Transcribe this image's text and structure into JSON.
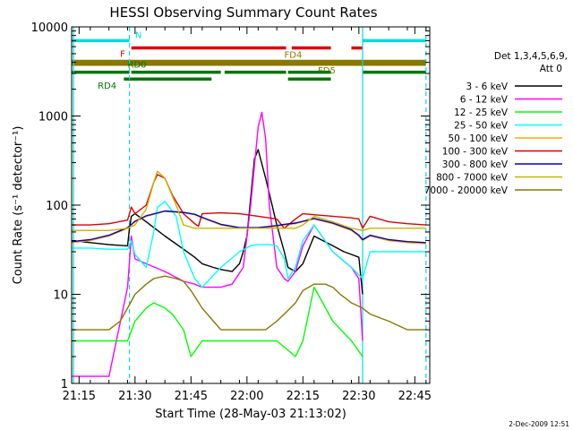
{
  "chart_data": {
    "type": "line",
    "title": "HESSI Observing Summary Count Rates",
    "xlabel": "Start Time (28-May-03 21:13:02)",
    "ylabel": "Count Rate (s⁻¹ detector⁻¹)",
    "x_unit": "minutes since 21:13:02",
    "xlim": [
      0,
      96
    ],
    "ylim": [
      1,
      10000
    ],
    "y_scale": "log",
    "x_ticks": [
      {
        "x": 2,
        "label": "21:15"
      },
      {
        "x": 17,
        "label": "21:30"
      },
      {
        "x": 32,
        "label": "21:45"
      },
      {
        "x": 47,
        "label": "22:00"
      },
      {
        "x": 62,
        "label": "22:15"
      },
      {
        "x": 77,
        "label": "22:30"
      },
      {
        "x": 92,
        "label": "22:45"
      }
    ],
    "y_ticks": [
      {
        "y": 1,
        "label": "1"
      },
      {
        "y": 10,
        "label": "10"
      },
      {
        "y": 100,
        "label": "100"
      },
      {
        "y": 1000,
        "label": "1000"
      },
      {
        "y": 10000,
        "label": "10000"
      }
    ],
    "legend": {
      "header": "Det 1,3,4,5,6,9,",
      "header2": "Att 0",
      "placement": "right"
    },
    "series": [
      {
        "name": "3 - 6 keV",
        "color": "#000000",
        "x": [
          0,
          5,
          10,
          15,
          15.5,
          16,
          17,
          20,
          25,
          30,
          33,
          35,
          38,
          40,
          43,
          45,
          46,
          47,
          48,
          49,
          50,
          52,
          55,
          57,
          58,
          60,
          62,
          65,
          70,
          73,
          75,
          77,
          78
        ],
        "values": [
          40,
          38,
          36,
          35,
          55,
          75,
          80,
          65,
          45,
          32,
          26,
          22,
          20,
          19,
          18,
          22,
          30,
          45,
          120,
          330,
          420,
          200,
          60,
          30,
          20,
          18,
          22,
          45,
          35,
          30,
          28,
          26,
          10
        ]
      },
      {
        "name": "6 - 12 keV",
        "color": "#ff00ff",
        "x": [
          0,
          5,
          10,
          15,
          16,
          17,
          20,
          25,
          30,
          33,
          35,
          40,
          43,
          46,
          48,
          50,
          51,
          52,
          53,
          55,
          57,
          58,
          60,
          62,
          65,
          70,
          75,
          77,
          78
        ],
        "values": [
          1.2,
          1.2,
          1.2,
          12,
          45,
          25,
          22,
          18,
          14,
          13,
          12,
          12,
          13,
          20,
          100,
          750,
          1100,
          550,
          100,
          20,
          15,
          14,
          18,
          35,
          60,
          30,
          20,
          15,
          3
        ]
      },
      {
        "name": "12 - 25 keV",
        "color": "#00ff00",
        "x": [
          0,
          10,
          15,
          17,
          20,
          22,
          25,
          27,
          30,
          32,
          35,
          40,
          45,
          50,
          55,
          60,
          62,
          65,
          70,
          75,
          78
        ],
        "values": [
          3,
          3,
          3,
          5,
          7,
          8,
          7,
          6,
          4,
          2,
          3,
          3,
          3,
          3,
          3,
          2,
          3,
          12,
          5,
          3,
          2
        ]
      },
      {
        "name": "25 - 50 keV",
        "color": "#00ffff",
        "x": [
          0,
          5,
          10,
          15,
          16,
          17,
          20,
          22,
          23,
          25,
          28,
          30,
          33,
          35,
          40,
          45,
          48,
          50,
          53,
          55,
          57,
          58,
          60,
          62,
          65,
          70,
          75,
          78,
          80,
          85,
          90,
          95
        ],
        "values": [
          33,
          33,
          32,
          32,
          40,
          28,
          20,
          50,
          95,
          110,
          75,
          30,
          15,
          12,
          20,
          30,
          35,
          36,
          36,
          35,
          25,
          15,
          20,
          40,
          60,
          30,
          20,
          15,
          30,
          30,
          30,
          30
        ]
      },
      {
        "name": "50 - 100 keV",
        "color": "#ffa500",
        "x": [
          0,
          5,
          10,
          15,
          17,
          20,
          25,
          30,
          33,
          35,
          40,
          45,
          50,
          55,
          57,
          60,
          62,
          65,
          70,
          75,
          77,
          78,
          80,
          85,
          90,
          95
        ],
        "values": [
          38,
          40,
          45,
          55,
          65,
          75,
          85,
          82,
          78,
          72,
          60,
          55,
          55,
          58,
          60,
          62,
          65,
          70,
          62,
          52,
          45,
          40,
          45,
          40,
          38,
          37
        ]
      },
      {
        "name": "100 - 300 keV",
        "color": "#dd0000",
        "x": [
          0,
          5,
          10,
          15,
          16,
          17,
          20,
          22,
          23,
          25,
          27,
          30,
          33,
          34,
          35,
          40,
          45,
          50,
          55,
          57,
          60,
          62,
          65,
          70,
          75,
          77,
          78,
          80,
          85,
          90,
          95
        ],
        "values": [
          60,
          60,
          62,
          68,
          95,
          80,
          100,
          180,
          220,
          200,
          130,
          80,
          62,
          58,
          80,
          82,
          80,
          75,
          70,
          55,
          70,
          80,
          78,
          75,
          72,
          70,
          55,
          75,
          65,
          62,
          60
        ]
      },
      {
        "name": "300 - 800 keV",
        "color": "#0000cc",
        "x": [
          0,
          5,
          10,
          15,
          17,
          20,
          25,
          30,
          33,
          35,
          40,
          45,
          50,
          55,
          57,
          60,
          62,
          65,
          70,
          75,
          77,
          78,
          80,
          85,
          90,
          95
        ],
        "values": [
          39,
          41,
          46,
          56,
          66,
          76,
          86,
          83,
          79,
          73,
          61,
          56,
          56,
          59,
          61,
          63,
          66,
          71,
          63,
          53,
          46,
          41,
          46,
          41,
          39,
          38
        ]
      },
      {
        "name": "800 - 7000 keV",
        "color": "#c8b400",
        "x": [
          0,
          10,
          15,
          17,
          20,
          22,
          23,
          25,
          28,
          30,
          33,
          35,
          40,
          45,
          50,
          55,
          57,
          60,
          62,
          65,
          70,
          75,
          78,
          80,
          90,
          95
        ],
        "values": [
          52,
          52,
          55,
          60,
          90,
          180,
          240,
          200,
          100,
          60,
          55,
          55,
          55,
          55,
          55,
          55,
          55,
          55,
          60,
          75,
          65,
          55,
          52,
          55,
          55,
          55
        ]
      },
      {
        "name": "7000 - 20000 keV",
        "color": "#887700",
        "x": [
          0,
          5,
          10,
          13,
          15,
          17,
          20,
          22,
          25,
          28,
          30,
          32,
          35,
          38,
          40,
          42,
          45,
          48,
          50,
          52,
          55,
          57,
          60,
          62,
          65,
          68,
          70,
          72,
          75,
          78,
          80,
          85,
          90,
          95
        ],
        "values": [
          4,
          4,
          4,
          5,
          7,
          10,
          13,
          15,
          16,
          15,
          14,
          11,
          7,
          5,
          4,
          4,
          4,
          4,
          4,
          4,
          5,
          6,
          8,
          11,
          13,
          13,
          12,
          10,
          8,
          7,
          6,
          5,
          4,
          4
        ]
      }
    ],
    "annotations": [
      {
        "label": "N",
        "color": "#00dddd",
        "segments": [
          [
            0,
            15.5
          ],
          [
            78,
            95
          ]
        ],
        "y": 7000
      },
      {
        "label": "F",
        "color": "#dd0000",
        "segments": [
          [
            16,
            57.5
          ],
          [
            59,
            69.5
          ],
          [
            75,
            78
          ]
        ],
        "y": 5800
      },
      {
        "label": "FD4",
        "color": "#887700",
        "segments": [
          [
            0,
            95
          ]
        ],
        "y": 4100
      },
      {
        "label": "FD5",
        "color": "#887700",
        "segments": [
          [
            0,
            95
          ]
        ],
        "y": 3800
      },
      {
        "label": "RD0",
        "color": "#007700",
        "segments": [
          [
            0,
            15.5
          ],
          [
            16,
            40
          ],
          [
            41,
            57.5
          ],
          [
            58,
            69.5
          ],
          [
            78,
            95
          ]
        ],
        "y": 3100
      },
      {
        "label": "RD4",
        "color": "#007700",
        "segments": [
          [
            14,
            37.5
          ],
          [
            58,
            69.5
          ]
        ],
        "y": 2600
      }
    ],
    "vlines": [
      {
        "x": 0.5,
        "color": "#00dddd",
        "style": "solid"
      },
      {
        "x": 15.5,
        "color": "#00dddd",
        "style": "dashed"
      },
      {
        "x": 78,
        "color": "#00dddd",
        "style": "solid"
      },
      {
        "x": 95,
        "color": "#00dddd",
        "style": "dashed"
      }
    ],
    "timestamp": "2-Dec-2009 12:51"
  }
}
